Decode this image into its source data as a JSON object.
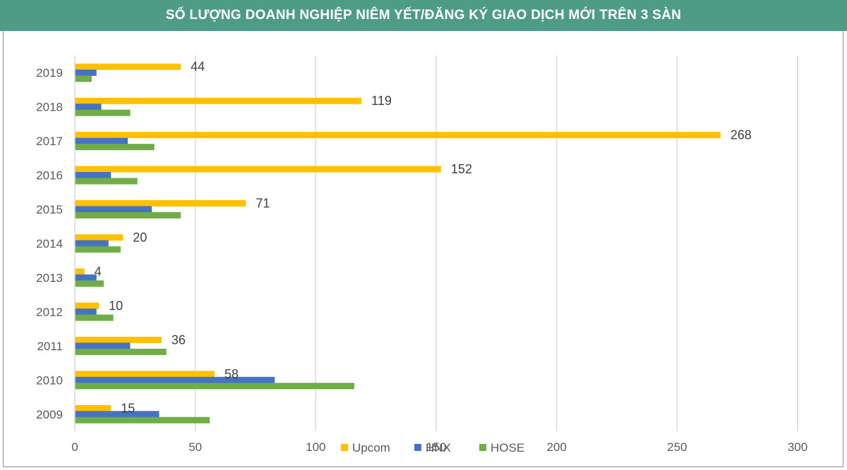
{
  "chart_data": {
    "type": "bar",
    "orientation": "horizontal",
    "title": "SỐ LƯỢNG DOANH NGHIỆP NIÊM YẾT/ĐĂNG KÝ GIAO DỊCH MỚI TRÊN 3 SÀN",
    "categories": [
      "2019",
      "2018",
      "2017",
      "2016",
      "2015",
      "2014",
      "2013",
      "2012",
      "2011",
      "2010",
      "2009"
    ],
    "series": [
      {
        "name": "Upcom",
        "color": "#ffc000",
        "values": [
          44,
          119,
          268,
          152,
          71,
          20,
          4,
          10,
          36,
          58,
          15
        ],
        "labels": [
          "44",
          "119",
          "268",
          "152",
          "71",
          "20",
          "4",
          "10",
          "36",
          "58",
          "15"
        ]
      },
      {
        "name": "HNX",
        "color": "#4472c4",
        "values": [
          9,
          11,
          22,
          15,
          32,
          14,
          9,
          9,
          23,
          83,
          35
        ]
      },
      {
        "name": "HOSE",
        "color": "#70ad47",
        "values": [
          7,
          23,
          33,
          26,
          44,
          19,
          12,
          16,
          38,
          116,
          56
        ]
      }
    ],
    "xlim": [
      0,
      300
    ],
    "xticks": [
      "0",
      "50",
      "100",
      "150",
      "200",
      "250",
      "300"
    ],
    "xtick_values": [
      0,
      50,
      100,
      150,
      200,
      250,
      300
    ],
    "grid": true,
    "legend": "bottom",
    "xlabel": "",
    "ylabel": ""
  }
}
